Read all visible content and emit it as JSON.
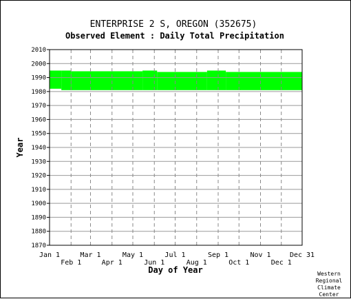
{
  "chart_data": {
    "type": "heatmap",
    "title": "ENTERPRISE 2 S, OREGON   (352675)",
    "subtitle": "Observed Element : Daily Total Precipitation",
    "xlabel": "Day of Year",
    "ylabel": "Year",
    "x_ticks_top": [
      "Jan 1",
      "Mar 1",
      "May 1",
      "Jul 1",
      "Sep 1",
      "Nov 1",
      "Dec 31"
    ],
    "x_ticks_bottom": [
      "Feb 1",
      "Apr 1",
      "Jun 1",
      "Aug 1",
      "Oct 1",
      "Dec 1"
    ],
    "x_tick_days": {
      "Jan 1": 1,
      "Feb 1": 32,
      "Mar 1": 60,
      "Apr 1": 91,
      "May 1": 121,
      "Jun 1": 152,
      "Jul 1": 182,
      "Aug 1": 213,
      "Sep 1": 244,
      "Oct 1": 274,
      "Nov 1": 305,
      "Dec 1": 335,
      "Dec 31": 365
    },
    "xlim": [
      1,
      365
    ],
    "ylim": [
      1870,
      2010
    ],
    "y_ticks": [
      1870,
      1880,
      1890,
      1900,
      1910,
      1920,
      1930,
      1940,
      1950,
      1960,
      1970,
      1980,
      1990,
      2000,
      2010
    ],
    "data_color": "#00ff00",
    "coverage": [
      {
        "day_start": 1,
        "day_end": 18,
        "year_start": 1982,
        "year_end": 1995
      },
      {
        "day_start": 18,
        "day_end": 32,
        "year_start": 1981,
        "year_end": 1995
      },
      {
        "day_start": 32,
        "day_end": 135,
        "year_start": 1981,
        "year_end": 1994.5
      },
      {
        "day_start": 135,
        "day_end": 156,
        "year_start": 1981,
        "year_end": 1995
      },
      {
        "day_start": 156,
        "day_end": 228,
        "year_start": 1981,
        "year_end": 1994
      },
      {
        "day_start": 228,
        "day_end": 255,
        "year_start": 1981,
        "year_end": 1995
      },
      {
        "day_start": 255,
        "day_end": 365,
        "year_start": 1981,
        "year_end": 1994
      }
    ],
    "grid": true
  },
  "credit": [
    "Western",
    "Regional",
    "Climate",
    "Center"
  ]
}
